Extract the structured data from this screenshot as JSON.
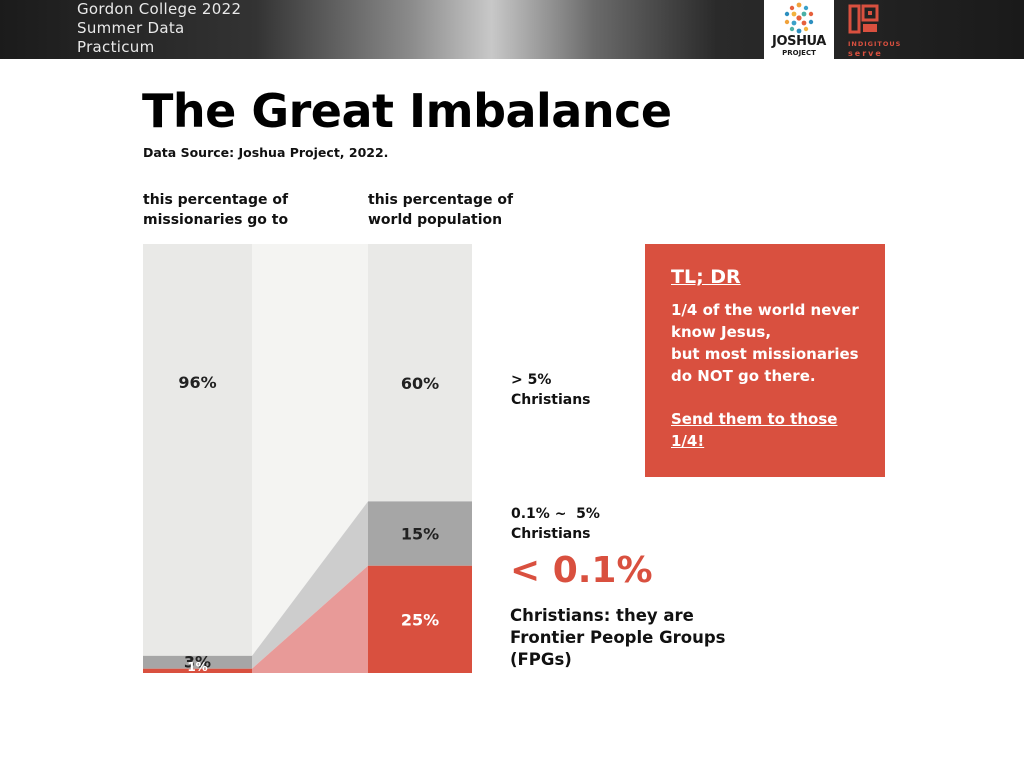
{
  "header": {
    "title_lines": [
      "Gordon College 2022",
      "Summer Data",
      "Practicum"
    ],
    "logos": {
      "joshua_project": {
        "line1": "JOSHUA",
        "line2": "PROJECT"
      },
      "indigitous": {
        "name": "INDIGITOUS",
        "tagline": "serve"
      }
    }
  },
  "title": "The Great Imbalance",
  "source": "Data Source: Joshua Project, 2022.",
  "column_headers": {
    "missionaries": [
      "this percentage of",
      "missionaries go to"
    ],
    "population": [
      "this percentage of",
      "world population"
    ]
  },
  "chart_data": {
    "type": "bar",
    "categories": [
      "this percentage of missionaries go to",
      "this percentage of world population"
    ],
    "series": [
      {
        "name": "> 5% Christians",
        "values": [
          96,
          60
        ],
        "labels": [
          "96%",
          "60%"
        ]
      },
      {
        "name": "0.1% ~ 5% Christians",
        "values": [
          3,
          15
        ],
        "labels": [
          "3%",
          "15%"
        ]
      },
      {
        "name": "< 0.1% Christians: they are Frontier People Groups (FPGs)",
        "values": [
          1,
          25
        ],
        "labels": [
          "1%",
          "25%"
        ]
      }
    ],
    "stacked": true,
    "percent_stacked": true
  },
  "side_labels": {
    "high": [
      "> 5%",
      "Christians"
    ],
    "mid": [
      "0.1% ~  5%",
      "Christians"
    ],
    "low_big": "< 0.1%",
    "low_desc": [
      "Christians: they are",
      "Frontier People Groups",
      "(FPGs)"
    ]
  },
  "tldr": {
    "heading": "TL; DR",
    "body": [
      "1/4 of the world never",
      "know Jesus,",
      "but most missionaries",
      "do NOT go there."
    ],
    "cta": [
      "Send them to those",
      "1/4!"
    ]
  },
  "colors": {
    "high": "#e9e9e7",
    "mid": "#a6a6a6",
    "low": "#d9503f",
    "connector_bg": "#f4f4f2",
    "connector_mid": "#cdcdcd",
    "connector_low": "#e89a98",
    "accent": "#d9503f"
  }
}
